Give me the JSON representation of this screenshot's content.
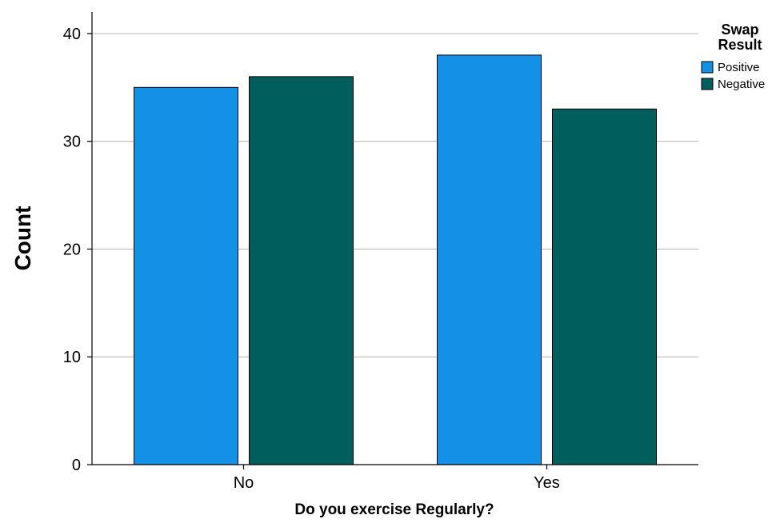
{
  "chart_data": {
    "type": "bar",
    "xlabel": "Do you exercise Regularly?",
    "ylabel": "Count",
    "categories": [
      "No",
      "Yes"
    ],
    "series": [
      {
        "name": "Positive",
        "values": [
          35,
          38
        ],
        "color": "#1490e6"
      },
      {
        "name": "Negative",
        "values": [
          36,
          33
        ],
        "color": "#005e5c"
      }
    ],
    "ylim": [
      0,
      42
    ],
    "yticks": [
      0,
      10,
      20,
      30,
      40
    ],
    "grid": true,
    "legend": {
      "title_lines": [
        "Swap",
        "Result"
      ],
      "placement": "top-right"
    }
  }
}
